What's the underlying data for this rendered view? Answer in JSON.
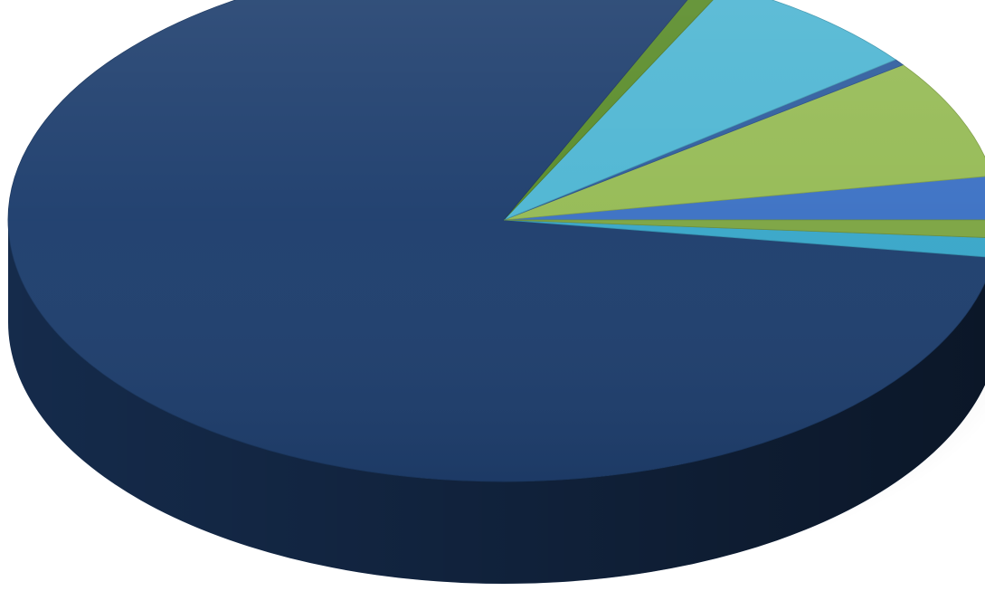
{
  "chart_data": {
    "type": "pie",
    "style": "3d",
    "legend": "none",
    "start_direction": "right",
    "slices": [
      {
        "value": 2.7,
        "color": "#3d72c4"
      },
      {
        "value": 7.4,
        "color": "#96bb56"
      },
      {
        "value": 0.4,
        "color": "#2f5d9e"
      },
      {
        "value": 7.1,
        "color": "#4fb6d3"
      },
      {
        "value": 0.8,
        "color": "#5a8c2a"
      },
      {
        "value": 79.3,
        "color": "#1f3f6e"
      },
      {
        "value": 1.2,
        "color": "#3aa7c9"
      },
      {
        "value": 1.1,
        "color": "#7da544"
      }
    ]
  }
}
